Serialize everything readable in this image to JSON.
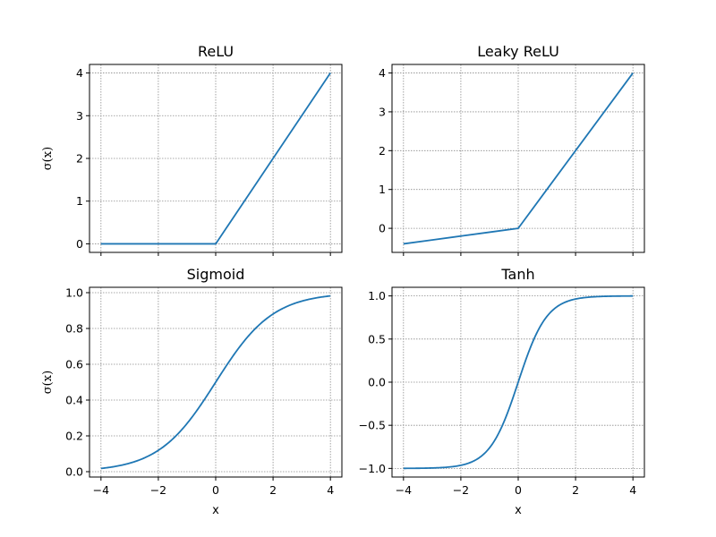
{
  "chart_data": [
    {
      "type": "line",
      "title": "ReLU",
      "xlabel": "",
      "ylabel": "σ(x)",
      "xlim": [
        -4.4,
        4.4
      ],
      "ylim": [
        -0.2,
        4.2
      ],
      "xticks": [
        -4,
        -2,
        0,
        2,
        4
      ],
      "xtick_labels_visible": false,
      "yticks": [
        0,
        1,
        2,
        3,
        4
      ],
      "ytick_labels": [
        "0",
        "1",
        "2",
        "3",
        "4"
      ],
      "grid": true,
      "series": [
        {
          "x": [
            -4,
            -3,
            -2,
            -1,
            0,
            1,
            2,
            3,
            4
          ],
          "y": [
            0,
            0,
            0,
            0,
            0,
            1,
            2,
            3,
            4
          ]
        }
      ]
    },
    {
      "type": "line",
      "title": "Leaky ReLU",
      "xlabel": "",
      "ylabel": "",
      "xlim": [
        -4.4,
        4.4
      ],
      "ylim": [
        -0.62,
        4.22
      ],
      "xticks": [
        -4,
        -2,
        0,
        2,
        4
      ],
      "xtick_labels_visible": false,
      "yticks": [
        0,
        1,
        2,
        3,
        4
      ],
      "ytick_labels": [
        "0",
        "1",
        "2",
        "3",
        "4"
      ],
      "grid": true,
      "series": [
        {
          "x": [
            -4,
            -3,
            -2,
            -1,
            0,
            1,
            2,
            3,
            4
          ],
          "y": [
            -0.4,
            -0.3,
            -0.2,
            -0.1,
            0,
            1,
            2,
            3,
            4
          ]
        }
      ]
    },
    {
      "type": "line",
      "title": "Sigmoid",
      "xlabel": "x",
      "ylabel": "σ(x)",
      "xlim": [
        -4.4,
        4.4
      ],
      "ylim": [
        -0.03,
        1.03
      ],
      "xticks": [
        -4,
        -2,
        0,
        2,
        4
      ],
      "xtick_labels": [
        "−4",
        "−2",
        "0",
        "2",
        "4"
      ],
      "yticks": [
        0.0,
        0.2,
        0.4,
        0.6,
        0.8,
        1.0
      ],
      "ytick_labels": [
        "0.0",
        "0.2",
        "0.4",
        "0.6",
        "0.8",
        "1.0"
      ],
      "grid": true,
      "series": [
        {
          "x": [
            -4,
            -3,
            -2,
            -1,
            0,
            1,
            2,
            3,
            4
          ],
          "y": [
            0.018,
            0.047,
            0.119,
            0.269,
            0.5,
            0.731,
            0.881,
            0.953,
            0.982
          ]
        }
      ]
    },
    {
      "type": "line",
      "title": "Tanh",
      "xlabel": "x",
      "ylabel": "",
      "xlim": [
        -4.4,
        4.4
      ],
      "ylim": [
        -1.1,
        1.1
      ],
      "xticks": [
        -4,
        -2,
        0,
        2,
        4
      ],
      "xtick_labels": [
        "−4",
        "−2",
        "0",
        "2",
        "4"
      ],
      "yticks": [
        -1.0,
        -0.5,
        0.0,
        0.5,
        1.0
      ],
      "ytick_labels": [
        "−1.0",
        "−0.5",
        "0.0",
        "0.5",
        "1.0"
      ],
      "grid": true,
      "series": [
        {
          "x": [
            -4,
            -3,
            -2,
            -1.5,
            -1,
            -0.5,
            0,
            0.5,
            1,
            1.5,
            2,
            3,
            4
          ],
          "y": [
            -0.999,
            -0.995,
            -0.964,
            -0.905,
            -0.762,
            -0.462,
            0,
            0.462,
            0.762,
            0.905,
            0.964,
            0.995,
            0.999
          ]
        }
      ]
    }
  ],
  "style": {
    "line_color": "#1f77b4",
    "grid_color": "#8c8c8c"
  }
}
